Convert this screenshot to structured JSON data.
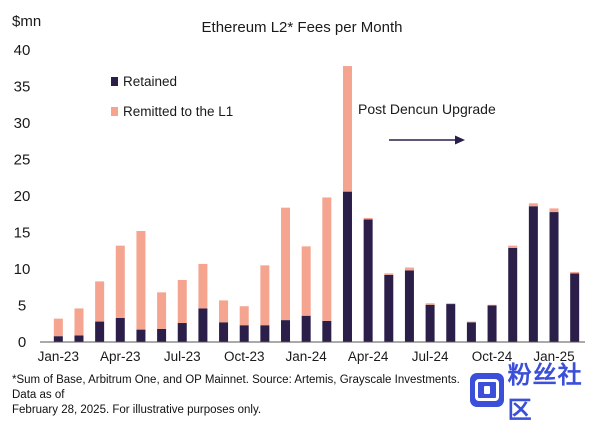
{
  "chart_data": {
    "type": "bar",
    "stacked": true,
    "title": "Ethereum L2* Fees per Month",
    "ylabel": "$mn",
    "ylim": [
      0,
      40
    ],
    "yticks": [
      0,
      5,
      10,
      15,
      20,
      25,
      30,
      35,
      40
    ],
    "grid": false,
    "legend_position": "top-left",
    "categories": [
      "Jan-23",
      "Feb-23",
      "Mar-23",
      "Apr-23",
      "May-23",
      "Jun-23",
      "Jul-23",
      "Aug-23",
      "Sep-23",
      "Oct-23",
      "Nov-23",
      "Dec-23",
      "Jan-24",
      "Feb-24",
      "Mar-24",
      "Apr-24",
      "May-24",
      "Jun-24",
      "Jul-24",
      "Aug-24",
      "Sep-24",
      "Oct-24",
      "Nov-24",
      "Dec-24",
      "Jan-25",
      "Feb-25"
    ],
    "xtick_labels": [
      "Jan-23",
      "",
      "",
      "Apr-23",
      "",
      "",
      "Jul-23",
      "",
      "",
      "Oct-23",
      "",
      "",
      "Jan-24",
      "",
      "",
      "Apr-24",
      "",
      "",
      "Jul-24",
      "",
      "",
      "Oct-24",
      "",
      "",
      "Jan-25",
      ""
    ],
    "series": [
      {
        "name": "Retained",
        "color": "#2b1f4a",
        "values": [
          0.8,
          0.9,
          2.8,
          3.3,
          1.7,
          1.8,
          2.6,
          4.6,
          2.7,
          2.3,
          2.3,
          3.0,
          3.6,
          2.9,
          20.6,
          16.8,
          9.2,
          9.8,
          5.1,
          5.2,
          2.7,
          5.0,
          12.9,
          18.6,
          17.8,
          9.4
        ]
      },
      {
        "name": "Remitted to the L1",
        "color": "#f4a48f",
        "values": [
          2.4,
          3.7,
          5.5,
          9.9,
          13.5,
          5.0,
          5.9,
          6.1,
          3.0,
          2.6,
          8.2,
          15.4,
          9.5,
          16.9,
          17.2,
          0.2,
          0.2,
          0.4,
          0.2,
          0.1,
          0.1,
          0.1,
          0.3,
          0.4,
          0.5,
          0.2
        ]
      }
    ],
    "annotation": {
      "text": "Post Dencun Upgrade",
      "arrow_direction": "right"
    }
  },
  "footnote_lines": [
    "*Sum of Base, Arbitrum One, and OP Mainnet. Source: Artemis, Grayscale Investments. Data as of",
    "February 28, 2025. For illustrative purposes only."
  ],
  "watermark": {
    "text": "粉丝社区",
    "icon": "square-logo-icon"
  }
}
